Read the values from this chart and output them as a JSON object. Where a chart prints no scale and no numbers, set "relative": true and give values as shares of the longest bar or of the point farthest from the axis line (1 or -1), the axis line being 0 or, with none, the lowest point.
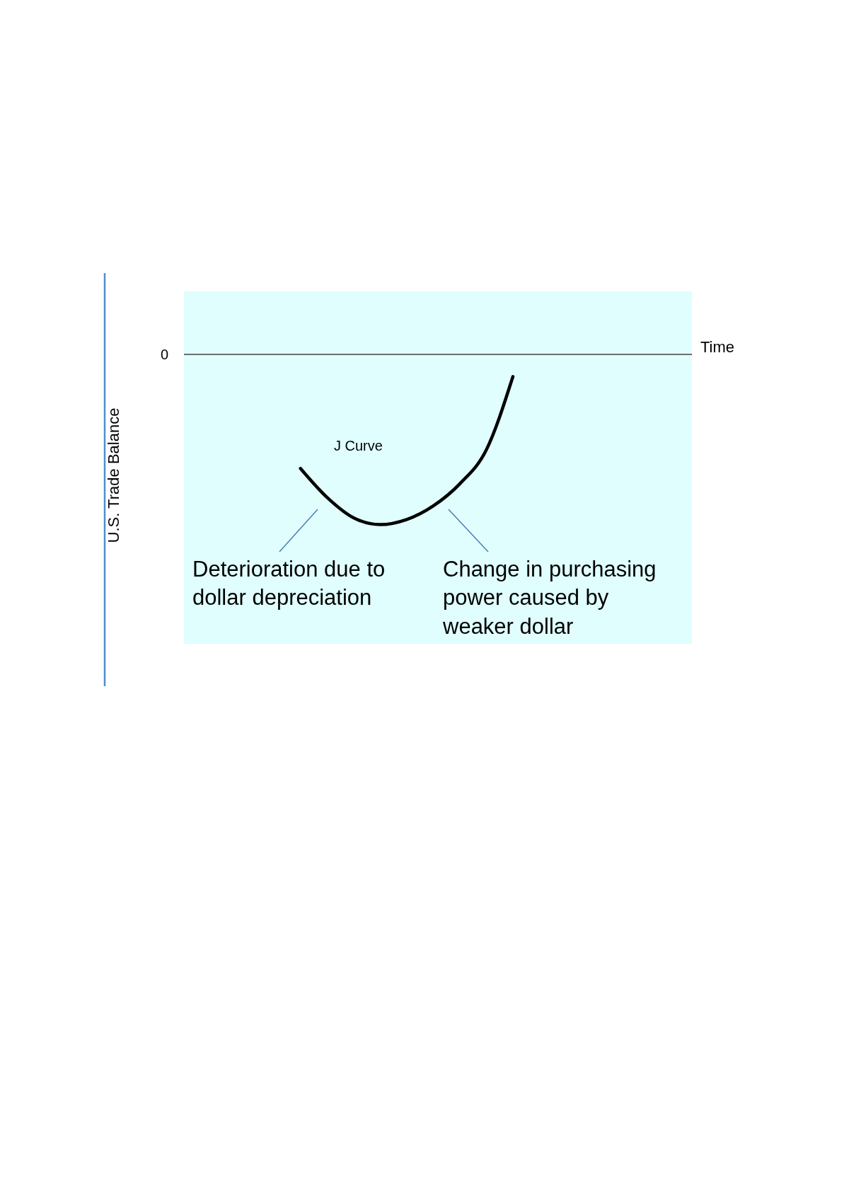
{
  "chart_data": {
    "type": "line",
    "relative": true,
    "xlabel": "Time",
    "ylabel": "U.S. Trade Balance",
    "categories": [
      null,
      null,
      null,
      null,
      null,
      null,
      null,
      null,
      null,
      null,
      null,
      null,
      null,
      null,
      null,
      null,
      null,
      null,
      null
    ],
    "series": [
      {
        "color": "#000000",
        "values": [
          null,
          null,
          null,
          null,
          -0.67,
          -0.84,
          -0.96,
          -1,
          -0.97,
          -0.89,
          -0.76,
          -0.56,
          -0.13,
          null,
          null,
          null,
          null,
          null,
          null
        ]
      }
    ],
    "ref_lines": [
      {
        "axis": "y",
        "value": 0,
        "label": "0",
        "color": "#404040"
      }
    ],
    "annotations": [
      "J Curve",
      "Deterioration due to dollar depreciation",
      "Change in purchasing power caused by weaker dollar"
    ],
    "marker": "none",
    "line_style": "solid"
  }
}
